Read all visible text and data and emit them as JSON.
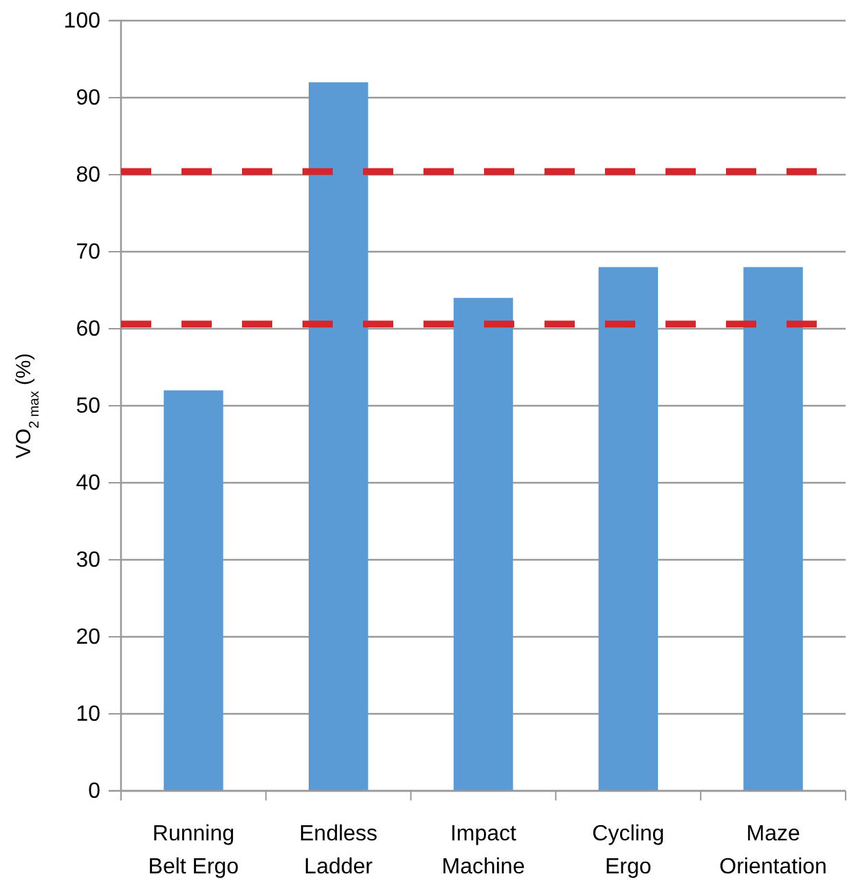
{
  "chart_data": {
    "type": "bar",
    "ylabel": "VO$_{2 max}$ (%)",
    "categories": [
      "Running Belt Ergo",
      "Endless Ladder",
      "Impact Machine",
      "Cycling Ergo",
      "Maze Orientation"
    ],
    "values": [
      52,
      92,
      64,
      68,
      68
    ],
    "color": "#5b9bd5",
    "ylim": [
      0,
      100
    ],
    "yticks": [
      0,
      10,
      20,
      30,
      40,
      50,
      60,
      70,
      80,
      90,
      100
    ],
    "grid": "y",
    "ref_lines": [
      {
        "axis": "y",
        "value": 80.4,
        "color": "#d7262b",
        "line_style": "dashed"
      },
      {
        "axis": "y",
        "value": 60.6,
        "color": "#d7262b",
        "line_style": "dashed"
      }
    ]
  }
}
